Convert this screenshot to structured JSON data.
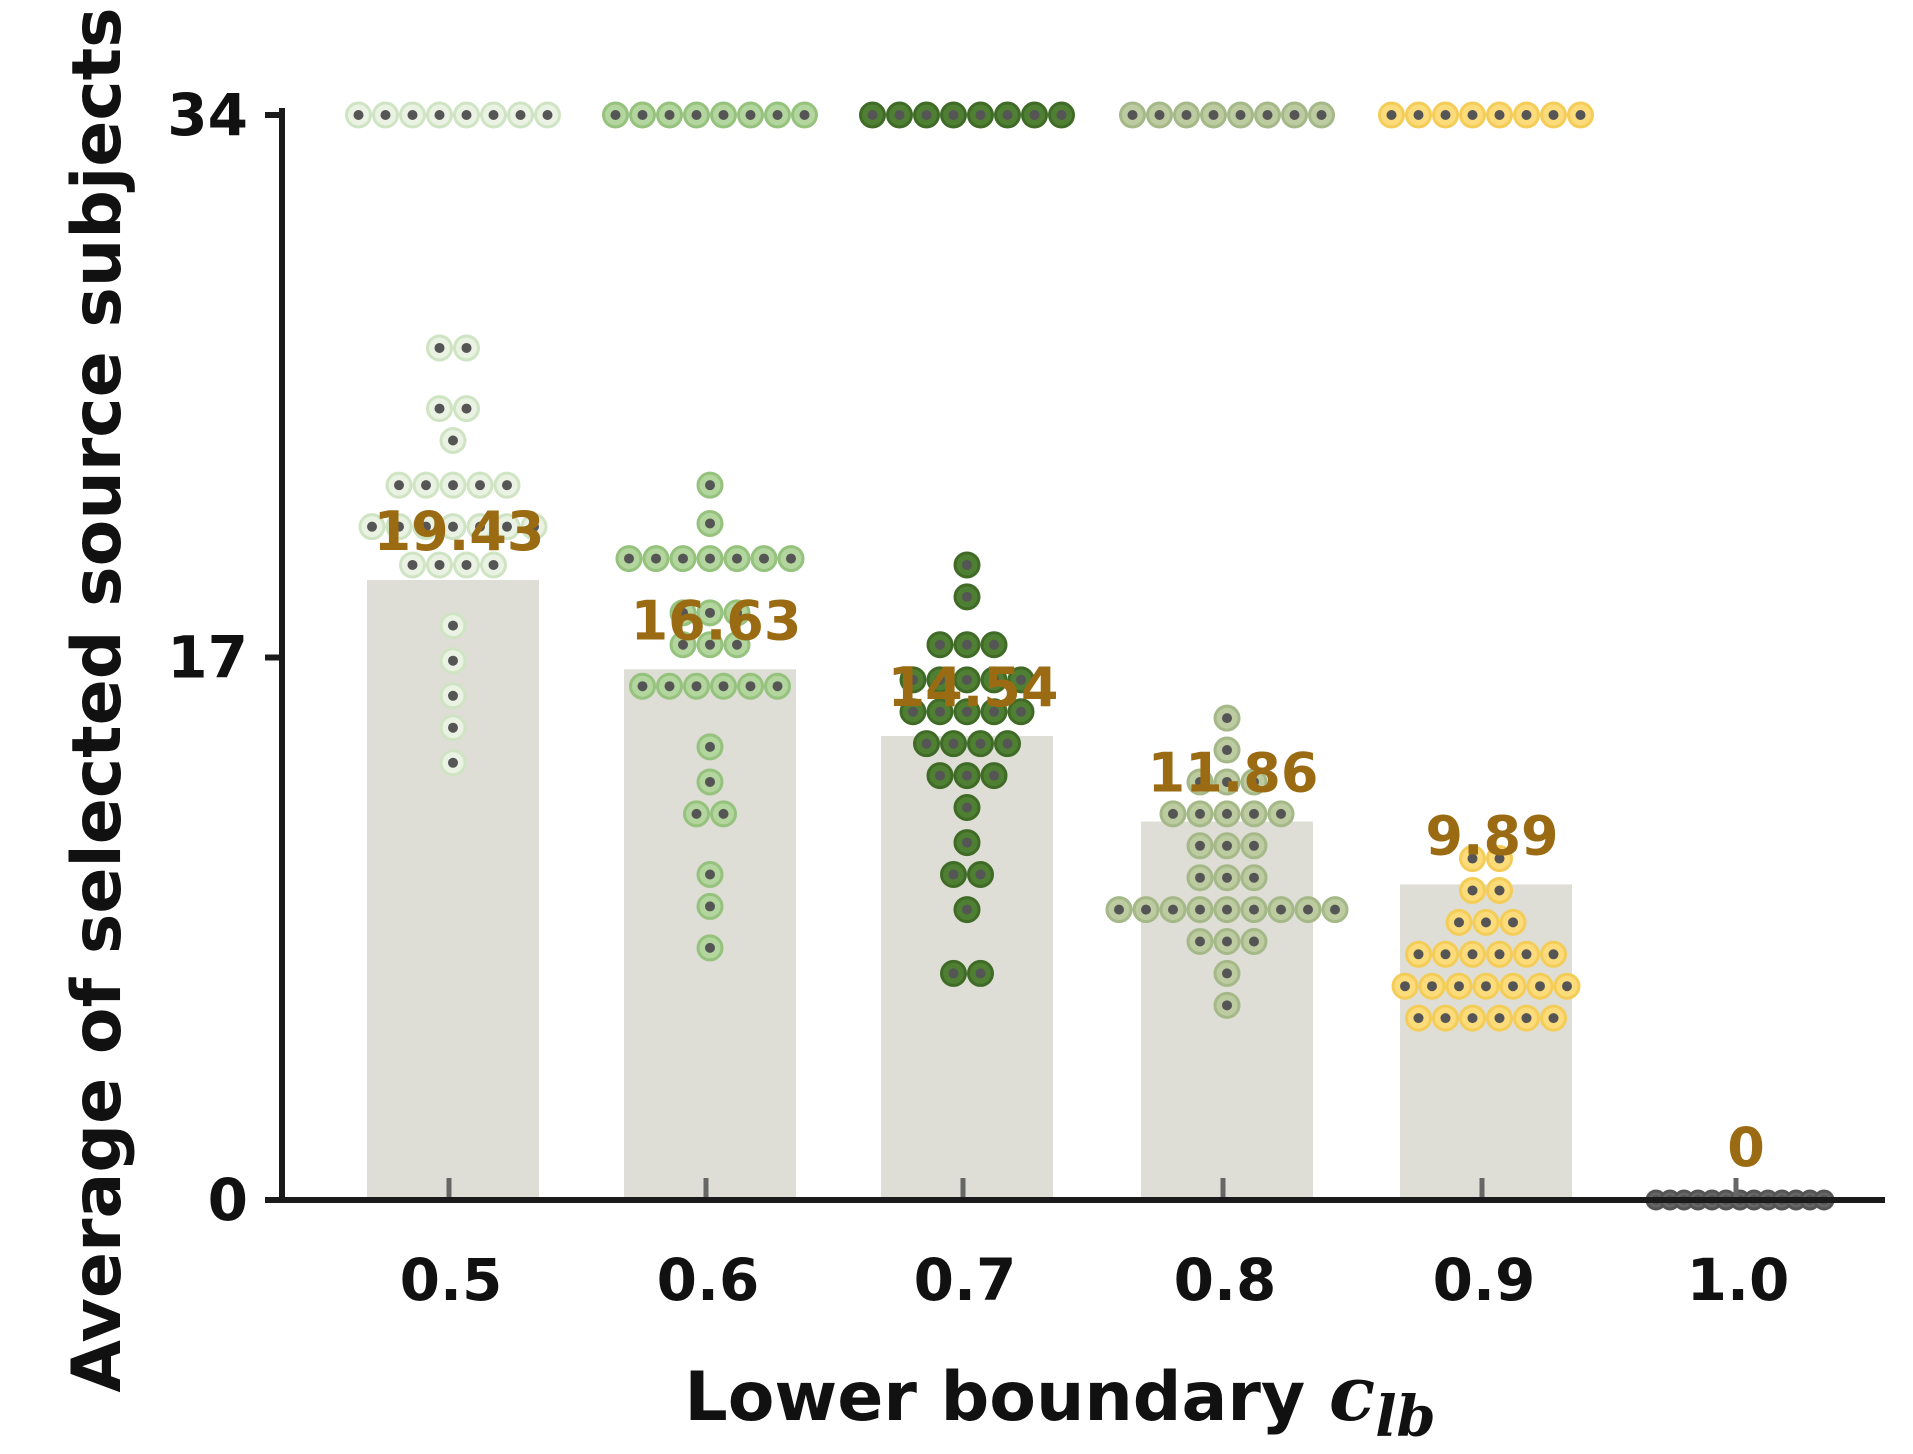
{
  "chart_data": {
    "type": "bar",
    "title": "",
    "xlabel": "Lower boundary",
    "xlabel_symbol": "c",
    "xlabel_subscript": "lb",
    "ylabel": "Average of selected source subjects",
    "categories": [
      "0.5",
      "0.6",
      "0.7",
      "0.8",
      "0.9",
      "1.0"
    ],
    "values": [
      19.43,
      16.63,
      14.54,
      11.86,
      9.89,
      0
    ],
    "value_labels": [
      "19.43",
      "16.63",
      "14.54",
      "11.86",
      "9.89",
      "0"
    ],
    "ylim": [
      0,
      34
    ],
    "yticks": [
      "0",
      "17",
      "34"
    ],
    "grid": false,
    "overlay": "swarm of individual subject values",
    "swarm": [
      {
        "top_count": 8,
        "rows": [
          [
            26.7,
            2
          ],
          [
            24.8,
            2
          ],
          [
            23.8,
            1
          ],
          [
            22.4,
            5
          ],
          [
            21.1,
            7
          ],
          [
            19.9,
            4
          ],
          [
            18.0,
            1
          ],
          [
            16.9,
            1
          ],
          [
            15.8,
            1
          ],
          [
            14.8,
            1
          ],
          [
            13.7,
            1
          ]
        ]
      },
      {
        "top_count": 8,
        "rows": [
          [
            22.4,
            1
          ],
          [
            21.2,
            1
          ],
          [
            20.1,
            7
          ],
          [
            18.4,
            3
          ],
          [
            17.4,
            3
          ],
          [
            16.1,
            6
          ],
          [
            14.2,
            1
          ],
          [
            13.1,
            1
          ],
          [
            12.1,
            2
          ],
          [
            10.2,
            1
          ],
          [
            9.2,
            1
          ],
          [
            7.9,
            1
          ]
        ]
      },
      {
        "top_count": 8,
        "rows": [
          [
            19.9,
            1
          ],
          [
            18.9,
            1
          ],
          [
            17.4,
            3
          ],
          [
            16.3,
            5
          ],
          [
            15.3,
            5
          ],
          [
            14.3,
            4
          ],
          [
            13.3,
            3
          ],
          [
            12.3,
            1
          ],
          [
            11.2,
            1
          ],
          [
            10.2,
            2
          ],
          [
            9.1,
            1
          ],
          [
            7.1,
            2
          ]
        ]
      },
      {
        "top_count": 8,
        "rows": [
          [
            15.1,
            1
          ],
          [
            14.1,
            1
          ],
          [
            13.1,
            3
          ],
          [
            12.1,
            5
          ],
          [
            11.1,
            3
          ],
          [
            10.1,
            3
          ],
          [
            9.1,
            9
          ],
          [
            8.1,
            3
          ],
          [
            7.1,
            1
          ],
          [
            6.1,
            1
          ]
        ]
      },
      {
        "top_count": 8,
        "rows": [
          [
            10.7,
            2
          ],
          [
            9.7,
            2
          ],
          [
            8.7,
            3
          ],
          [
            7.7,
            6
          ],
          [
            6.7,
            7
          ],
          [
            5.7,
            6
          ]
        ]
      },
      {
        "top_count": 0,
        "rows": [
          [
            0,
            13
          ]
        ]
      }
    ],
    "colors": {
      "bar": "#deded6",
      "value_label": "#9a6b12",
      "axis": "#1a1a1a",
      "dot_center": "#555555",
      "series_fill": [
        "#e9f2e3",
        "#b3d59e",
        "#4f7f33",
        "#bccba0",
        "#fbdb7a",
        "#666666"
      ],
      "series_ring": [
        "#cfe4c3",
        "#95c27c",
        "#3f6b27",
        "#a5b888",
        "#f4cd58",
        "#555555"
      ]
    }
  }
}
